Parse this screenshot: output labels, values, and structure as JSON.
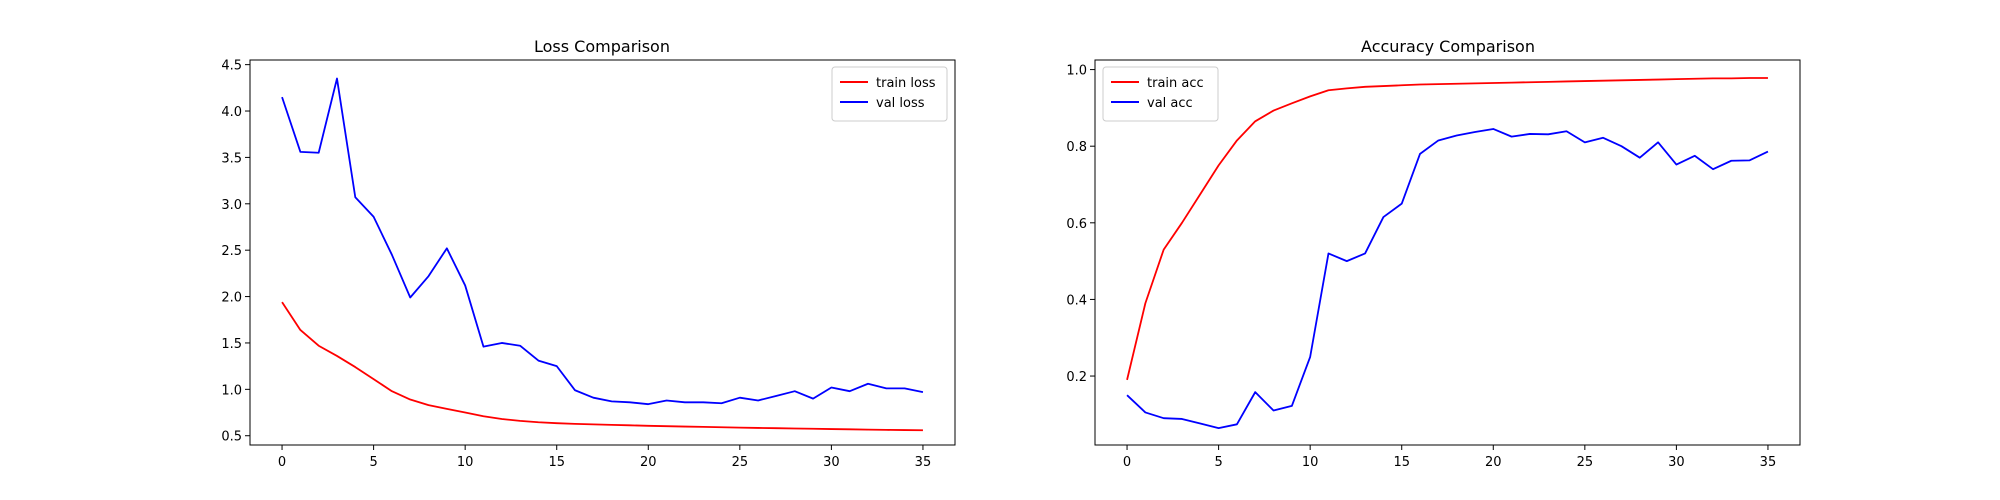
{
  "colors": {
    "train": "#ff0000",
    "val": "#0000ff",
    "axis": "#000000",
    "background": "#ffffff"
  },
  "chart_data": [
    {
      "type": "line",
      "title": "Loss Comparison",
      "xlabel": "",
      "ylabel": "",
      "xlim": [
        -1.75,
        36.75
      ],
      "ylim": [
        0.4,
        4.55
      ],
      "xticks": [
        0,
        5,
        10,
        15,
        20,
        25,
        30,
        35
      ],
      "yticks": [
        0.5,
        1.0,
        1.5,
        2.0,
        2.5,
        3.0,
        3.5,
        4.0,
        4.5
      ],
      "ytick_format": 1,
      "grid": false,
      "legend": "upper right",
      "x": [
        0,
        1,
        2,
        3,
        4,
        5,
        6,
        7,
        8,
        9,
        10,
        11,
        12,
        13,
        14,
        15,
        16,
        17,
        18,
        19,
        20,
        21,
        22,
        23,
        24,
        25,
        26,
        27,
        28,
        29,
        30,
        31,
        32,
        33,
        34,
        35
      ],
      "series": [
        {
          "name": "train loss",
          "color": "#ff0000",
          "values": [
            1.94,
            1.64,
            1.47,
            1.36,
            1.24,
            1.11,
            0.98,
            0.89,
            0.83,
            0.79,
            0.75,
            0.71,
            0.68,
            0.66,
            0.645,
            0.635,
            0.628,
            0.622,
            0.617,
            0.612,
            0.607,
            0.603,
            0.599,
            0.595,
            0.591,
            0.587,
            0.584,
            0.581,
            0.578,
            0.575,
            0.572,
            0.569,
            0.566,
            0.563,
            0.561,
            0.559
          ]
        },
        {
          "name": "val loss",
          "color": "#0000ff",
          "values": [
            4.15,
            3.56,
            3.55,
            4.35,
            3.07,
            2.86,
            2.45,
            1.99,
            2.22,
            2.52,
            2.12,
            1.46,
            1.5,
            1.47,
            1.31,
            1.25,
            0.99,
            0.91,
            0.87,
            0.86,
            0.84,
            0.88,
            0.86,
            0.86,
            0.85,
            0.91,
            0.88,
            0.93,
            0.98,
            0.9,
            1.02,
            0.98,
            1.06,
            1.01,
            1.01,
            0.97
          ]
        }
      ]
    },
    {
      "type": "line",
      "title": "Accuracy Comparison",
      "xlabel": "",
      "ylabel": "",
      "xlim": [
        -1.75,
        36.75
      ],
      "ylim": [
        0.02,
        1.025
      ],
      "xticks": [
        0,
        5,
        10,
        15,
        20,
        25,
        30,
        35
      ],
      "yticks": [
        0.2,
        0.4,
        0.6,
        0.8,
        1.0
      ],
      "ytick_format": 1,
      "grid": false,
      "legend": "upper left",
      "x": [
        0,
        1,
        2,
        3,
        4,
        5,
        6,
        7,
        8,
        9,
        10,
        11,
        12,
        13,
        14,
        15,
        16,
        17,
        18,
        19,
        20,
        21,
        22,
        23,
        24,
        25,
        26,
        27,
        28,
        29,
        30,
        31,
        32,
        33,
        34,
        35
      ],
      "series": [
        {
          "name": "train acc",
          "color": "#ff0000",
          "values": [
            0.19,
            0.39,
            0.53,
            0.6,
            0.675,
            0.75,
            0.815,
            0.865,
            0.893,
            0.912,
            0.93,
            0.946,
            0.951,
            0.955,
            0.957,
            0.959,
            0.961,
            0.962,
            0.963,
            0.964,
            0.965,
            0.966,
            0.967,
            0.968,
            0.969,
            0.97,
            0.971,
            0.972,
            0.973,
            0.974,
            0.975,
            0.976,
            0.977,
            0.977,
            0.978,
            0.978
          ]
        },
        {
          "name": "val acc",
          "color": "#0000ff",
          "values": [
            0.15,
            0.105,
            0.09,
            0.088,
            0.076,
            0.064,
            0.074,
            0.158,
            0.11,
            0.122,
            0.25,
            0.52,
            0.5,
            0.52,
            0.615,
            0.65,
            0.78,
            0.815,
            0.828,
            0.837,
            0.845,
            0.825,
            0.832,
            0.831,
            0.839,
            0.81,
            0.822,
            0.8,
            0.77,
            0.81,
            0.752,
            0.775,
            0.74,
            0.762,
            0.763,
            0.786
          ]
        }
      ]
    }
  ]
}
